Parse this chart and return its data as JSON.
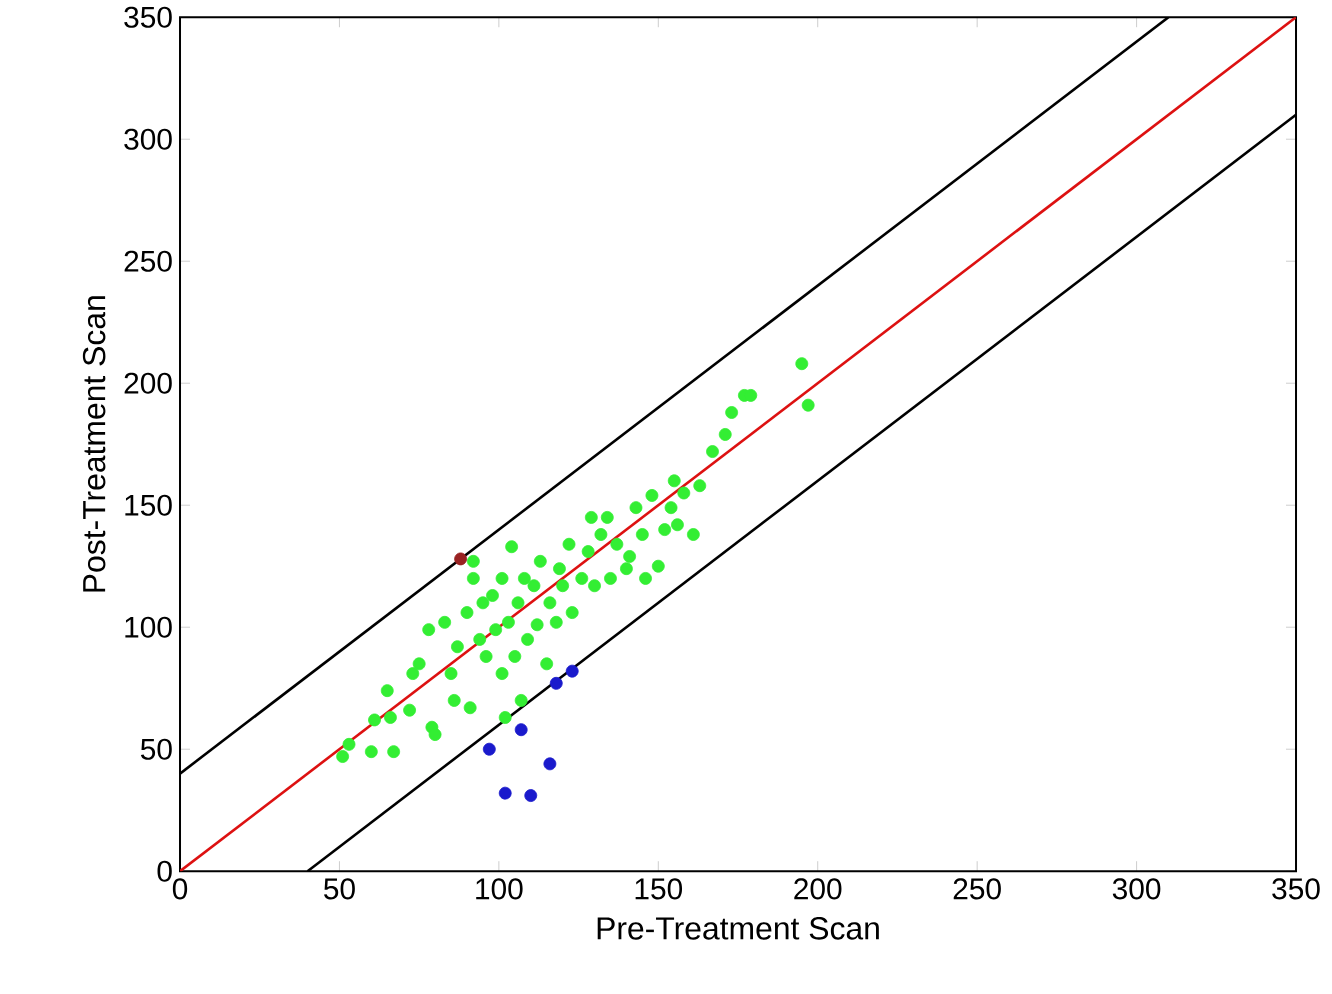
{
  "chart_data": {
    "type": "scatter",
    "xlabel": "Pre-Treatment Scan",
    "ylabel": "Post-Treatment Scan",
    "xlim": [
      0,
      350
    ],
    "ylim": [
      0,
      350
    ],
    "xticks": [
      0,
      50,
      100,
      150,
      200,
      250,
      300,
      350
    ],
    "yticks": [
      0,
      50,
      100,
      150,
      200,
      250,
      300,
      350
    ],
    "grid": false,
    "series": [
      {
        "type": "line",
        "color": "#000000",
        "marker": "none",
        "x": [
          0,
          310
        ],
        "values": [
          40,
          350
        ]
      },
      {
        "type": "line",
        "color": "#000000",
        "marker": "none",
        "x": [
          40,
          350
        ],
        "values": [
          0,
          310
        ]
      },
      {
        "type": "line",
        "color": "#dd1111",
        "marker": "none",
        "x": [
          0,
          350
        ],
        "values": [
          0,
          350
        ]
      },
      {
        "color": "#33ee33",
        "marker": "circle",
        "x": [
          51,
          53,
          60,
          61,
          67,
          65,
          66,
          72,
          73,
          75,
          78,
          79,
          80,
          83,
          85,
          86,
          87,
          90,
          91,
          92,
          92,
          94,
          95,
          96,
          98,
          99,
          101,
          101,
          102,
          103,
          104,
          105,
          106,
          107,
          108,
          109,
          111,
          112,
          113,
          115,
          116,
          118,
          119,
          120,
          122,
          123,
          126,
          128,
          129,
          130,
          132,
          134,
          135,
          137,
          140,
          141,
          143,
          145,
          146,
          148,
          150,
          152,
          154,
          155,
          156,
          158,
          161,
          163,
          167,
          171,
          173,
          177,
          179,
          195,
          197
        ],
        "values": [
          47,
          52,
          49,
          62,
          49,
          74,
          63,
          66,
          81,
          85,
          99,
          59,
          56,
          102,
          81,
          70,
          92,
          106,
          67,
          120,
          127,
          95,
          110,
          88,
          113,
          99,
          81,
          120,
          63,
          102,
          133,
          88,
          110,
          70,
          120,
          95,
          117,
          101,
          127,
          85,
          110,
          102,
          124,
          117,
          134,
          106,
          120,
          131,
          145,
          117,
          138,
          145,
          120,
          134,
          124,
          129,
          149,
          138,
          120,
          154,
          125,
          140,
          149,
          160,
          142,
          155,
          138,
          158,
          172,
          179,
          188,
          195,
          195,
          208,
          191
        ]
      },
      {
        "color": "#1a1acc",
        "marker": "circle",
        "x": [
          97,
          102,
          107,
          110,
          116,
          118,
          123
        ],
        "values": [
          50,
          32,
          58,
          31,
          44,
          77,
          82
        ]
      },
      {
        "color": "#992222",
        "marker": "circle",
        "x": [
          88
        ],
        "values": [
          128
        ]
      }
    ]
  }
}
